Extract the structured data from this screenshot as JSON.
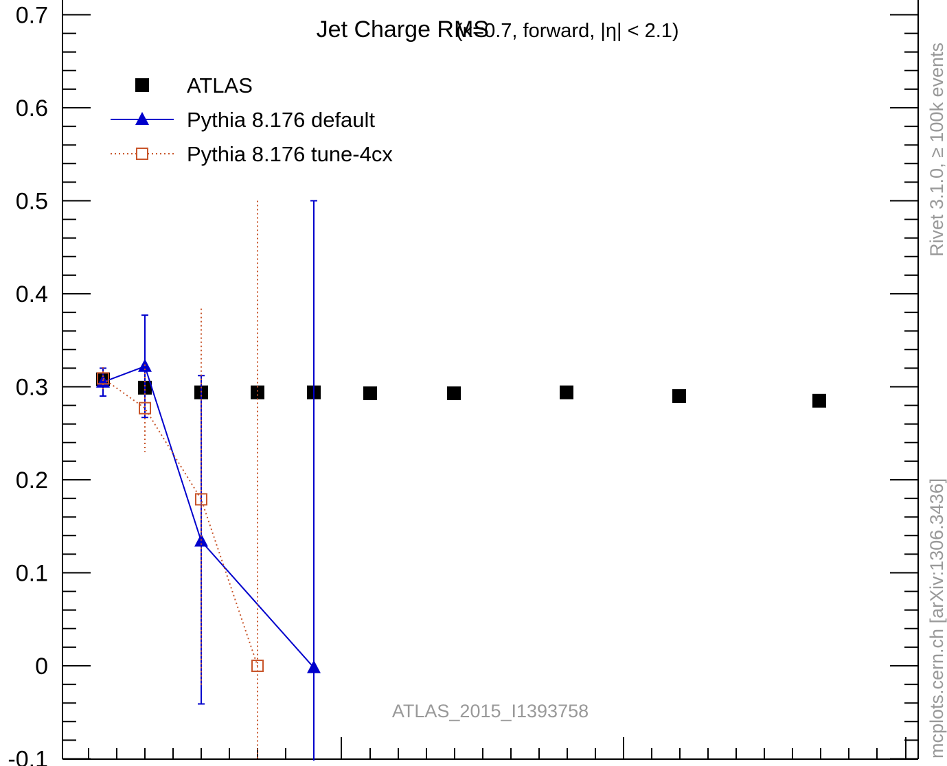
{
  "chart_data": {
    "type": "scatter",
    "title": "Jet Charge RMS",
    "title_suffix": "(κ=0.7, forward, |η| < 2.1)",
    "xlabel": "",
    "ylabel": "",
    "ylim": [
      -0.1,
      0.7
    ],
    "grid": false,
    "legend_position": "top-left",
    "y_tick_labels": [
      "0.7",
      "0.6",
      "0.5",
      "0.4",
      "0.3",
      "0.2",
      "0.1",
      "0",
      "-0.1"
    ],
    "y_tick_values": [
      0.7,
      0.6,
      0.5,
      0.4,
      0.3,
      0.2,
      0.1,
      0,
      -0.1
    ],
    "x": [
      1,
      2,
      3,
      4,
      5,
      6,
      7,
      8,
      9,
      10
    ],
    "series": [
      {
        "name": "ATLAS",
        "style": "filled-square",
        "color": "#000000",
        "x": [
          1,
          2,
          3,
          4,
          5,
          6,
          7,
          8,
          9,
          10
        ],
        "values": [
          0.308,
          0.299,
          0.294,
          0.294,
          0.294,
          0.293,
          0.293,
          0.294,
          0.29,
          0.285
        ],
        "err_low": [
          0.004,
          0.004,
          0.004,
          0.004,
          0.004,
          0.004,
          0.004,
          0.004,
          0.004,
          0.004
        ],
        "err_high": [
          0.004,
          0.004,
          0.004,
          0.004,
          0.004,
          0.004,
          0.004,
          0.004,
          0.004,
          0.004
        ]
      },
      {
        "name": "Pythia 8.176 default",
        "style": "solid-line-triangle",
        "color": "#0000cc",
        "x": [
          1,
          2,
          3,
          5
        ],
        "values": [
          0.305,
          0.322,
          0.134,
          -0.002
        ],
        "err_low": [
          0.015,
          0.055,
          0.175,
          0.1
        ],
        "err_high": [
          0.015,
          0.055,
          0.178,
          0.502
        ]
      },
      {
        "name": "Pythia 8.176 tune-4cx",
        "style": "dotted-line-open-square",
        "color": "#c8552a",
        "x": [
          1,
          2,
          3,
          4
        ],
        "values": [
          0.309,
          0.277,
          0.179,
          0.0
        ],
        "err_low": [
          0.012,
          0.047,
          0.2,
          0.1
        ],
        "err_high": [
          0.012,
          0.047,
          0.205,
          0.5
        ]
      }
    ],
    "annotations": {
      "analysis_id": "ATLAS_2015_I1393758",
      "side_label_top": "Rivet 3.1.0, ≥ 100k events",
      "side_label_bottom": "mcplots.cern.ch [arXiv:1306.3436]"
    }
  }
}
